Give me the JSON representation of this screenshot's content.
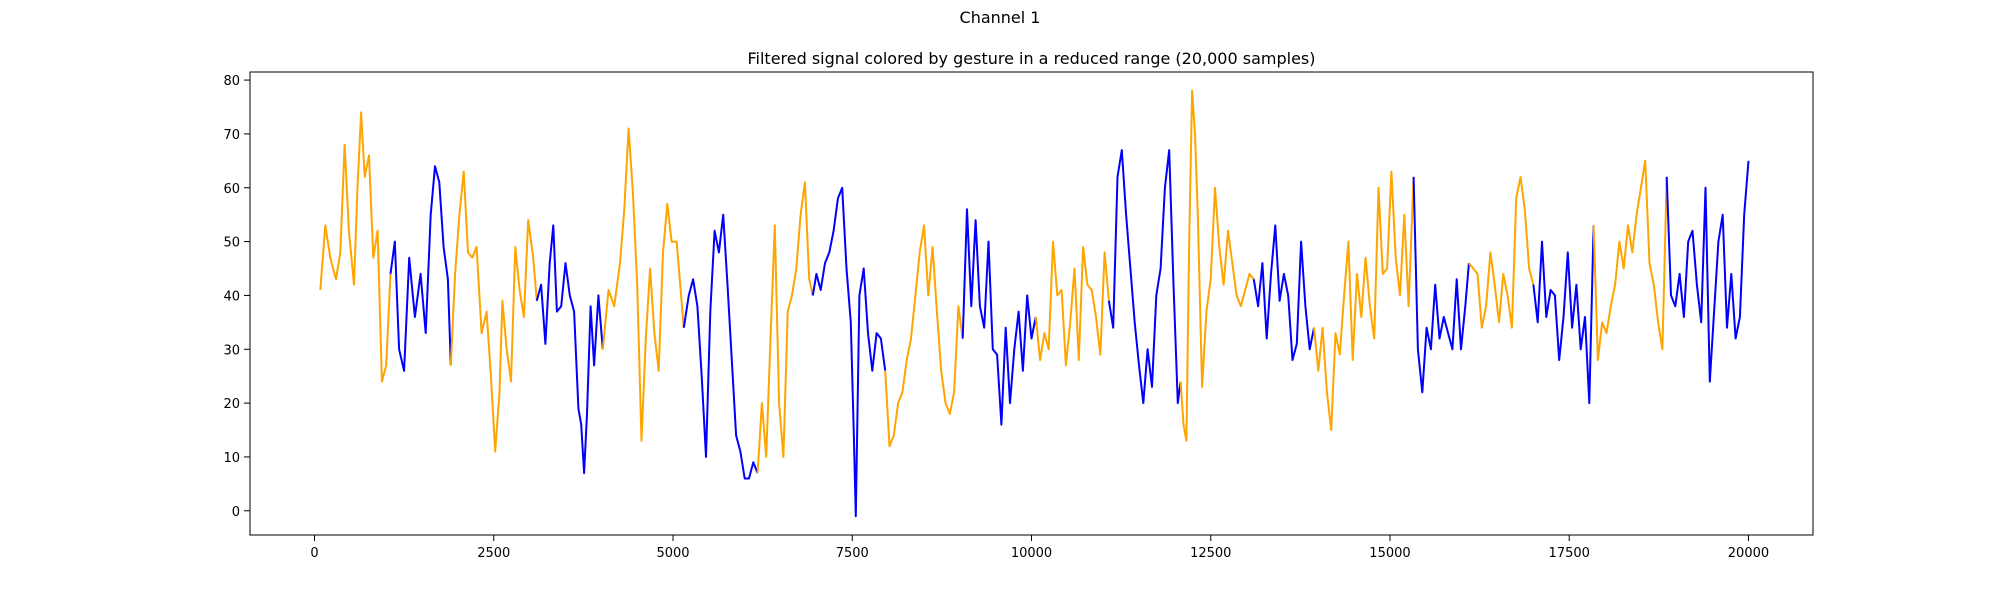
{
  "figure": {
    "suptitle": "Channel 1"
  },
  "chart_data": {
    "type": "line",
    "title": "Filtered signal colored by gesture in a reduced range (20,000 samples)",
    "xlabel": "",
    "ylabel": "",
    "xlim": [
      -900,
      20900
    ],
    "ylim": [
      -4.5,
      81.5
    ],
    "xticks": [
      0,
      2500,
      5000,
      7500,
      10000,
      12500,
      15000,
      17500,
      20000
    ],
    "yticks": [
      0,
      10,
      20,
      30,
      40,
      50,
      60,
      70,
      80
    ],
    "grid": false,
    "legend": "none",
    "colors": {
      "orange": "#ffa500",
      "blue": "#0000ff"
    },
    "segments": [
      {
        "color": "orange",
        "x": [
          80,
          150,
          220,
          300,
          360,
          420,
          480,
          550,
          600,
          650,
          700,
          760,
          820,
          880,
          940,
          1000,
          1060
        ],
        "y": [
          41,
          53,
          47,
          43,
          48,
          68,
          52,
          42,
          60,
          74,
          62,
          66,
          47,
          52,
          24,
          27,
          44
        ]
      },
      {
        "color": "blue",
        "x": [
          1060,
          1120,
          1180,
          1250,
          1320,
          1400,
          1480,
          1550,
          1620,
          1680,
          1740,
          1800,
          1860,
          1900
        ],
        "y": [
          44,
          50,
          30,
          26,
          47,
          36,
          44,
          33,
          55,
          64,
          61,
          49,
          43,
          27
        ]
      },
      {
        "color": "orange",
        "x": [
          1900,
          1960,
          2020,
          2080,
          2140,
          2200,
          2260,
          2330,
          2400,
          2460,
          2520,
          2580,
          2620,
          2680,
          2740,
          2800,
          2860,
          2920,
          2980,
          3050,
          3100
        ],
        "y": [
          27,
          44,
          55,
          63,
          48,
          47,
          49,
          33,
          37,
          25,
          11,
          22,
          39,
          30,
          24,
          49,
          41,
          36,
          54,
          47,
          39
        ]
      },
      {
        "color": "blue",
        "x": [
          3100,
          3160,
          3220,
          3280,
          3330,
          3380,
          3440,
          3500,
          3560,
          3620,
          3680,
          3720,
          3760,
          3800,
          3850,
          3900,
          3960,
          4020
        ],
        "y": [
          39,
          42,
          31,
          46,
          53,
          37,
          38,
          46,
          40,
          37,
          19,
          16,
          7,
          18,
          38,
          27,
          40,
          30
        ]
      },
      {
        "color": "orange",
        "x": [
          4020,
          4100,
          4180,
          4260,
          4320,
          4380,
          4440,
          4500,
          4560,
          4620,
          4680,
          4740,
          4800,
          4860,
          4920,
          4980,
          5050,
          5100,
          5150
        ],
        "y": [
          30,
          41,
          38,
          46,
          56,
          71,
          59,
          42,
          13,
          32,
          45,
          33,
          26,
          48,
          57,
          50,
          50,
          42,
          34
        ]
      },
      {
        "color": "blue",
        "x": [
          5150,
          5220,
          5280,
          5340,
          5400,
          5460,
          5520,
          5580,
          5640,
          5700,
          5760,
          5820,
          5880,
          5940,
          6000,
          6060,
          6120,
          6180
        ],
        "y": [
          34,
          40,
          43,
          38,
          25,
          10,
          37,
          52,
          48,
          55,
          42,
          28,
          14,
          11,
          6,
          6,
          9,
          7
        ]
      },
      {
        "color": "orange",
        "x": [
          6180,
          6240,
          6300,
          6360,
          6420,
          6480,
          6540,
          6600,
          6660,
          6720,
          6780,
          6840,
          6900,
          6950
        ],
        "y": [
          7,
          20,
          10,
          32,
          53,
          20,
          10,
          37,
          40,
          45,
          55,
          61,
          43,
          40
        ]
      },
      {
        "color": "blue",
        "x": [
          6950,
          7000,
          7060,
          7120,
          7180,
          7240,
          7300,
          7360,
          7420,
          7480,
          7520,
          7550,
          7600,
          7660,
          7720,
          7780,
          7840,
          7900,
          7960
        ],
        "y": [
          40,
          44,
          41,
          46,
          48,
          52,
          58,
          60,
          45,
          35,
          15,
          -1,
          40,
          45,
          33,
          26,
          33,
          32,
          26
        ]
      },
      {
        "color": "orange",
        "x": [
          7960,
          8020,
          8080,
          8140,
          8200,
          8260,
          8320,
          8380,
          8440,
          8500,
          8560,
          8620,
          8680,
          8740,
          8800,
          8860,
          8920,
          8980,
          9040
        ],
        "y": [
          26,
          12,
          14,
          20,
          22,
          28,
          32,
          40,
          48,
          53,
          40,
          49,
          37,
          26,
          20,
          18,
          22,
          38,
          32
        ]
      },
      {
        "color": "blue",
        "x": [
          9040,
          9100,
          9160,
          9220,
          9280,
          9340,
          9400,
          9460,
          9520,
          9580,
          9640,
          9700,
          9760,
          9820,
          9880,
          9940,
          10000,
          10060
        ],
        "y": [
          32,
          56,
          38,
          54,
          38,
          34,
          50,
          30,
          29,
          16,
          34,
          20,
          30,
          37,
          26,
          40,
          32,
          36
        ]
      },
      {
        "color": "orange",
        "x": [
          10060,
          10120,
          10180,
          10240,
          10300,
          10360,
          10420,
          10480,
          10540,
          10600,
          10660,
          10720,
          10780,
          10840,
          10900,
          10960,
          11020,
          11080
        ],
        "y": [
          36,
          28,
          33,
          30,
          50,
          40,
          41,
          27,
          35,
          45,
          28,
          49,
          42,
          41,
          36,
          29,
          48,
          39
        ]
      },
      {
        "color": "blue",
        "x": [
          11080,
          11140,
          11200,
          11260,
          11320,
          11380,
          11440,
          11500,
          11560,
          11620,
          11680,
          11740,
          11800,
          11860,
          11920,
          11980,
          12040,
          12080
        ],
        "y": [
          39,
          34,
          62,
          67,
          55,
          45,
          35,
          27,
          20,
          30,
          23,
          40,
          45,
          60,
          67,
          42,
          20,
          24
        ]
      },
      {
        "color": "orange",
        "x": [
          12080,
          12120,
          12160,
          12200,
          12240,
          12280,
          12320,
          12380,
          12440,
          12500,
          12560,
          12620,
          12680,
          12740,
          12800,
          12860,
          12920,
          12980,
          13040,
          13100
        ],
        "y": [
          24,
          16,
          13,
          50,
          78,
          70,
          55,
          23,
          37,
          43,
          60,
          49,
          42,
          52,
          46,
          40,
          38,
          41,
          44,
          43
        ]
      },
      {
        "color": "blue",
        "x": [
          13100,
          13160,
          13220,
          13280,
          13340,
          13400,
          13460,
          13520,
          13580,
          13640,
          13700,
          13760,
          13820,
          13880,
          13940
        ],
        "y": [
          43,
          38,
          46,
          32,
          44,
          53,
          39,
          44,
          40,
          28,
          31,
          50,
          38,
          30,
          34
        ]
      },
      {
        "color": "orange",
        "x": [
          13940,
          14000,
          14060,
          14120,
          14180,
          14240,
          14300,
          14360,
          14420,
          14480,
          14540,
          14600,
          14660,
          14720,
          14780,
          14840,
          14900,
          14960,
          15020,
          15080,
          15140,
          15200,
          15260,
          15330
        ],
        "y": [
          34,
          26,
          34,
          22,
          15,
          33,
          29,
          40,
          50,
          28,
          44,
          36,
          47,
          38,
          32,
          60,
          44,
          45,
          63,
          47,
          40,
          55,
          38,
          62
        ]
      },
      {
        "color": "blue",
        "x": [
          15330,
          15390,
          15450,
          15510,
          15570,
          15630,
          15690,
          15750,
          15810,
          15870,
          15930,
          15990,
          16050,
          16100
        ],
        "y": [
          62,
          30,
          22,
          34,
          30,
          42,
          32,
          36,
          33,
          30,
          43,
          30,
          38,
          46
        ]
      },
      {
        "color": "orange",
        "x": [
          16100,
          16160,
          16220,
          16280,
          16340,
          16400,
          16460,
          16520,
          16580,
          16640,
          16700,
          16760,
          16820,
          16880,
          16940,
          17000
        ],
        "y": [
          46,
          45,
          44,
          34,
          38,
          48,
          42,
          35,
          44,
          40,
          34,
          58,
          62,
          56,
          45,
          42
        ]
      },
      {
        "color": "blue",
        "x": [
          17000,
          17060,
          17120,
          17180,
          17240,
          17300,
          17360,
          17420,
          17480,
          17540,
          17600,
          17660,
          17720,
          17780,
          17840
        ],
        "y": [
          42,
          35,
          50,
          36,
          41,
          40,
          28,
          36,
          48,
          34,
          42,
          30,
          36,
          20,
          53
        ]
      },
      {
        "color": "orange",
        "x": [
          17840,
          17900,
          17960,
          18020,
          18080,
          18140,
          18200,
          18260,
          18320,
          18380,
          18440,
          18500,
          18560,
          18620,
          18680,
          18740,
          18800,
          18860
        ],
        "y": [
          53,
          28,
          35,
          33,
          38,
          42,
          50,
          45,
          53,
          48,
          55,
          60,
          65,
          46,
          42,
          35,
          30,
          62
        ]
      },
      {
        "color": "blue",
        "x": [
          18860,
          18920,
          18980,
          19040,
          19100,
          19160,
          19220,
          19280,
          19340,
          19400,
          19460,
          19520,
          19580,
          19640,
          19700,
          19760,
          19820,
          19880,
          19940,
          20000
        ],
        "y": [
          62,
          40,
          38,
          44,
          36,
          50,
          52,
          42,
          35,
          60,
          24,
          37,
          50,
          55,
          34,
          44,
          32,
          36,
          55,
          65
        ]
      }
    ]
  }
}
